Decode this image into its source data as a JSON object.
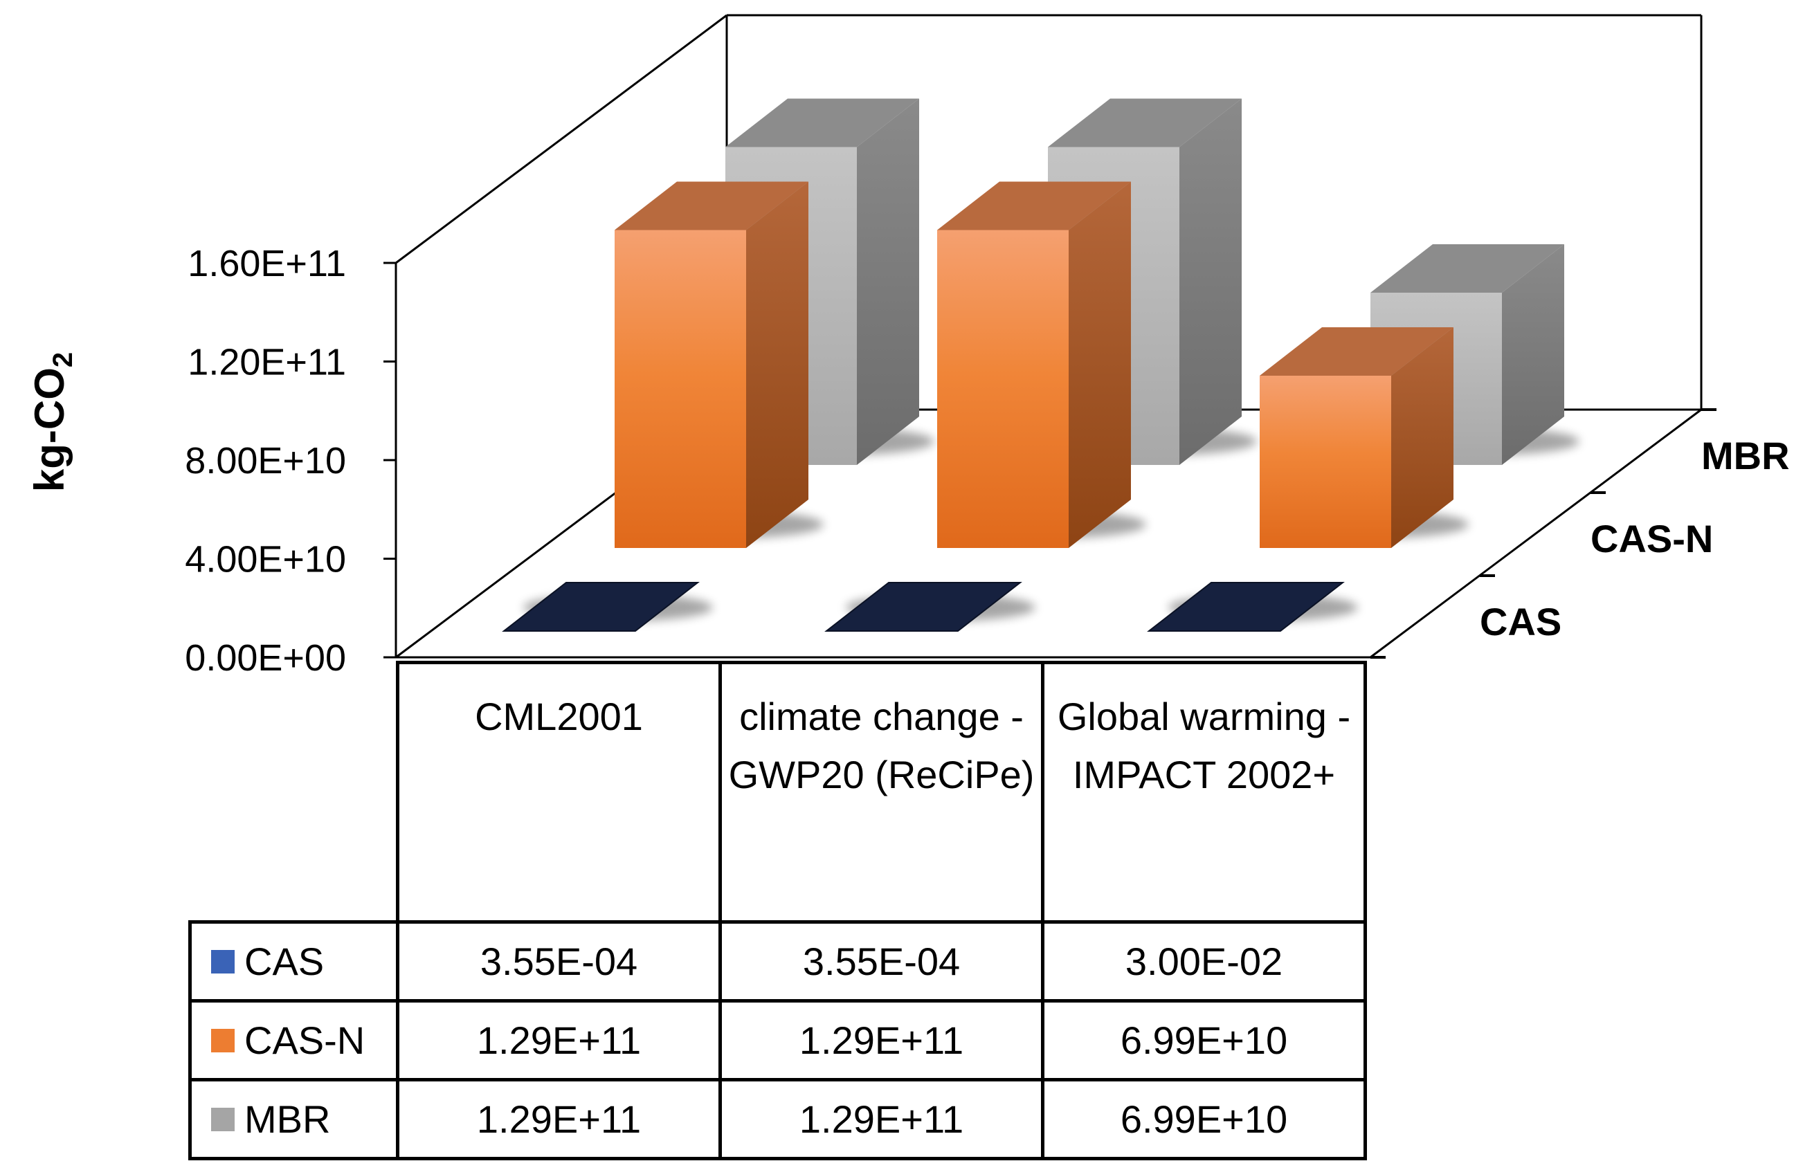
{
  "chart_data": {
    "type": "bar3d",
    "title": "",
    "ylabel_main": "kg-CO",
    "ylabel_sub": "2",
    "ylim": [
      0,
      160000000000
    ],
    "y_ticks": [
      {
        "value": 0,
        "label": "0.00E+00"
      },
      {
        "value": 40000000000,
        "label": "4.00E+10"
      },
      {
        "value": 80000000000,
        "label": "8.00E+10"
      },
      {
        "value": 120000000000,
        "label": "1.20E+11"
      },
      {
        "value": 160000000000,
        "label": "1.60E+11"
      }
    ],
    "categories": [
      "CML2001",
      "climate change - GWP20 (ReCiPe)",
      "Global warming - IMPACT 2002+"
    ],
    "series": [
      {
        "name": "CAS",
        "color": "#4472c4",
        "values": [
          0.000355,
          0.000355,
          0.03
        ],
        "labels": [
          "3.55E-04",
          "3.55E-04",
          "3.00E-02"
        ]
      },
      {
        "name": "CAS-N",
        "color": "#ed7d31",
        "values": [
          129000000000,
          129000000000,
          69900000000
        ],
        "labels": [
          "1.29E+11",
          "1.29E+11",
          "6.99E+10"
        ]
      },
      {
        "name": "MBR",
        "color": "#a5a5a5",
        "values": [
          129000000000,
          129000000000,
          69900000000
        ],
        "labels": [
          "1.29E+11",
          "1.29E+11",
          "6.99E+10"
        ]
      }
    ]
  },
  "table": {
    "header": [
      "CML2001",
      "climate change - GWP20 (ReCiPe)",
      "Global warming - IMPACT 2002+"
    ]
  }
}
